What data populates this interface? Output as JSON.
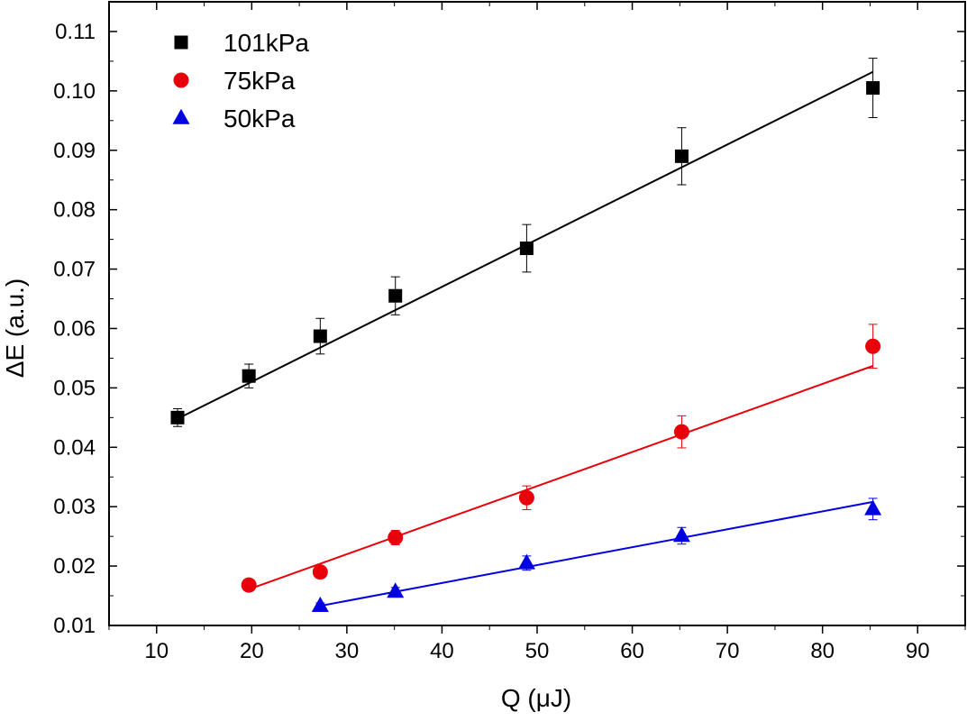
{
  "chart_data": {
    "type": "scatter",
    "title": "",
    "xlabel": "Q (μJ)",
    "ylabel": "ΔE (a.u.)",
    "xlim": [
      5,
      95
    ],
    "ylim": [
      0.01,
      0.115
    ],
    "x_ticks": [
      10,
      20,
      30,
      40,
      50,
      60,
      70,
      80,
      90
    ],
    "x_tick_labels": [
      "10",
      "20",
      "30",
      "40",
      "50",
      "60",
      "70",
      "80",
      "90"
    ],
    "y_ticks": [
      0.01,
      0.02,
      0.03,
      0.04,
      0.05,
      0.06,
      0.07,
      0.08,
      0.09,
      0.1,
      0.11
    ],
    "y_tick_labels": [
      "0.01",
      "0.02",
      "0.03",
      "0.04",
      "0.05",
      "0.06",
      "0.07",
      "0.08",
      "0.09",
      "0.10",
      "0.11"
    ],
    "grid": false,
    "legend_position": "top-left",
    "series": [
      {
        "name": "101kPa",
        "marker": "square",
        "color": "#000000",
        "x": [
          12.2,
          19.7,
          27.2,
          35.1,
          48.9,
          65.2,
          85.3
        ],
        "y": [
          0.045,
          0.052,
          0.0587,
          0.0655,
          0.0735,
          0.089,
          0.1005
        ],
        "yerr": [
          0.0015,
          0.002,
          0.003,
          0.0032,
          0.004,
          0.0048,
          0.005
        ],
        "fit": {
          "x": [
            12.2,
            85.3
          ],
          "y": [
            0.0448,
            0.1032
          ]
        }
      },
      {
        "name": "75kPa",
        "marker": "circle",
        "color": "#e8000b",
        "x": [
          19.7,
          27.2,
          35.1,
          48.9,
          65.2,
          85.3
        ],
        "y": [
          0.0168,
          0.019,
          0.0248,
          0.0315,
          0.0426,
          0.057
        ],
        "yerr": [
          0.0005,
          0.0008,
          0.0012,
          0.002,
          0.0027,
          0.0037
        ],
        "fit": {
          "x": [
            19.7,
            85.3
          ],
          "y": [
            0.0161,
            0.0537
          ]
        }
      },
      {
        "name": "50kPa",
        "marker": "triangle",
        "color": "#0000e0",
        "x": [
          27.2,
          35.1,
          48.9,
          65.2,
          85.3
        ],
        "y": [
          0.0133,
          0.0157,
          0.0205,
          0.0251,
          0.0296
        ],
        "yerr": [
          0.0005,
          0.0007,
          0.0012,
          0.0014,
          0.0018
        ],
        "fit": {
          "x": [
            27.2,
            85.3
          ],
          "y": [
            0.0133,
            0.0308
          ]
        }
      }
    ]
  }
}
